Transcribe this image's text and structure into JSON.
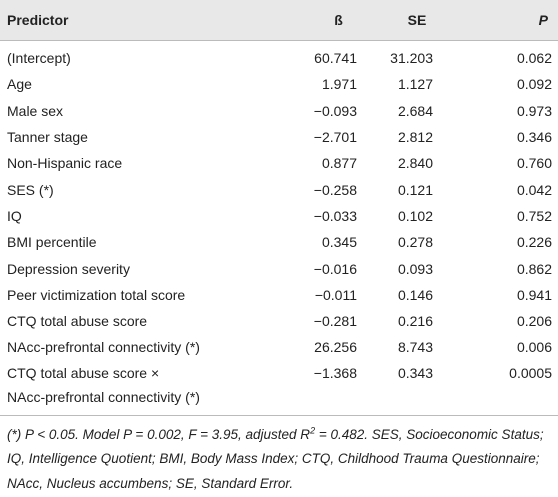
{
  "table": {
    "header": [
      "Predictor",
      "ß",
      "SE",
      "P"
    ],
    "rows": [
      [
        "(Intercept)",
        "60.741",
        "31.203",
        "0.062"
      ],
      [
        "Age",
        "1.971",
        "1.127",
        "0.092"
      ],
      [
        "Male sex",
        "−0.093",
        "2.684",
        "0.973"
      ],
      [
        "Tanner stage",
        "−2.701",
        "2.812",
        "0.346"
      ],
      [
        "Non-Hispanic race",
        "0.877",
        "2.840",
        "0.760"
      ],
      [
        "SES (*)",
        "−0.258",
        "0.121",
        "0.042"
      ],
      [
        "IQ",
        "−0.033",
        "0.102",
        "0.752"
      ],
      [
        "BMI percentile",
        "0.345",
        "0.278",
        "0.226"
      ],
      [
        "Depression severity",
        "−0.016",
        "0.093",
        "0.862"
      ],
      [
        "Peer victimization total score",
        "−0.011",
        "0.146",
        "0.941"
      ],
      [
        "CTQ total abuse score",
        "−0.281",
        "0.216",
        "0.206"
      ],
      [
        "NAcc-prefrontal connectivity (*)",
        "26.256",
        "8.743",
        "0.006"
      ],
      [
        "CTQ total abuse score ×\nNAcc-prefrontal connectivity (*)",
        "−1.368",
        "0.343",
        "0.0005"
      ]
    ]
  },
  "footnote": {
    "before": "(*) P < 0.05. Model P = 0.002, F = 3.95, adjusted R",
    "sup": "2",
    "after": " = 0.482. SES, Socioeconomic Status; IQ, Intelligence Quotient; BMI, Body Mass Index; CTQ, Childhood Trauma Questionnaire; NAcc, Nucleus accumbens; SE, Standard Error."
  }
}
